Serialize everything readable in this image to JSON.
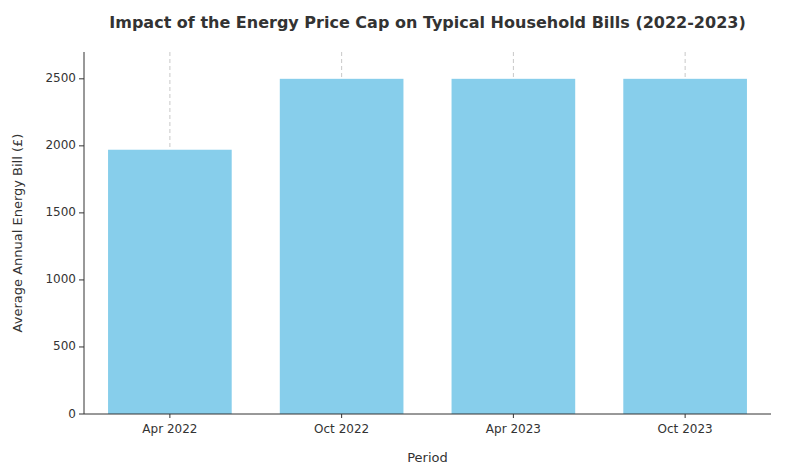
{
  "chart_data": {
    "type": "bar",
    "title": "Impact of the Energy Price Cap on Typical Household Bills (2022-2023)",
    "xlabel": "Period",
    "ylabel": "Average Annual Energy Bill (£)",
    "categories": [
      "Apr 2022",
      "Oct 2022",
      "Apr 2023",
      "Oct 2023"
    ],
    "values": [
      1971,
      2500,
      2500,
      2500
    ],
    "color": "#87CEEB",
    "ylim": [
      0,
      2700
    ],
    "yticks": [
      0,
      500,
      1000,
      1500,
      2000,
      2500
    ],
    "grid": "x"
  }
}
